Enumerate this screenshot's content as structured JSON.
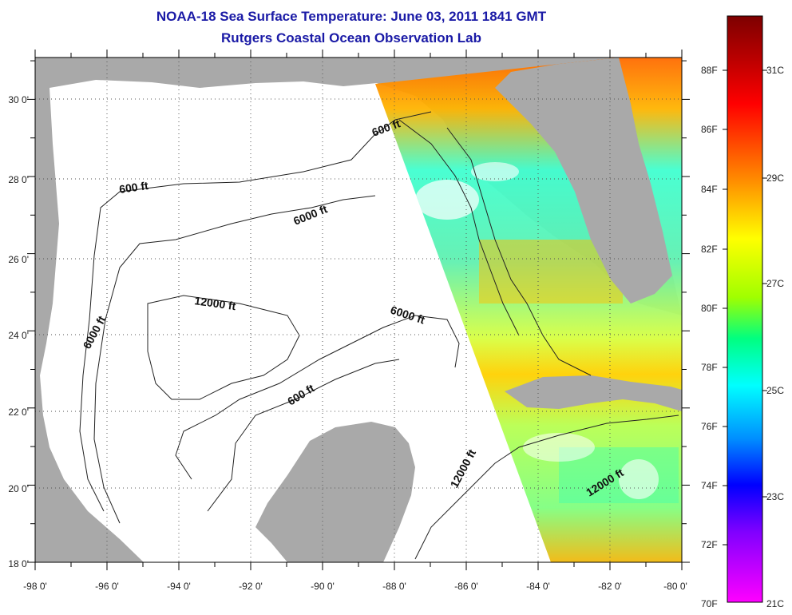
{
  "title": {
    "line1": "NOAA-18 Sea Surface Temperature:  June 03, 2011 1841 GMT",
    "line2": "Rutgers Coastal Ocean Observation Lab"
  },
  "map": {
    "lon_labels": [
      "-98 0'",
      "-96 0'",
      "-94 0'",
      "-92 0'",
      "-90 0'",
      "-88 0'",
      "-86 0'",
      "-84 0'",
      "-82 0'",
      "-80 0'"
    ],
    "lat_labels": [
      "30 0'",
      "28 0'",
      "26 0'",
      "24 0'",
      "22 0'",
      "20 0'",
      "18 0'"
    ],
    "contour_labels": [
      {
        "text": "600 ft"
      },
      {
        "text": "600 ft"
      },
      {
        "text": "6000 ft"
      },
      {
        "text": "12000 ft"
      },
      {
        "text": "6000 ft"
      },
      {
        "text": "6000 ft"
      },
      {
        "text": "600 ft"
      },
      {
        "text": "12000 ft"
      },
      {
        "text": "12000 ft"
      }
    ],
    "colors": {
      "land": "#a9a9a9",
      "ocean": "#ffffff",
      "grid": "#555555"
    }
  },
  "colorbar": {
    "f_labels": [
      "88F",
      "86F",
      "84F",
      "82F",
      "80F",
      "78F",
      "76F",
      "74F",
      "72F",
      "70F"
    ],
    "c_labels": [
      "31C",
      "29C",
      "27C",
      "25C",
      "23C",
      "21C"
    ],
    "colors_top_to_bottom": [
      "#7d0000",
      "#ff0000",
      "#ff8c00",
      "#ffff00",
      "#7fff00",
      "#00ff80",
      "#00ffff",
      "#0080ff",
      "#0000ff",
      "#8000ff",
      "#ff00ff"
    ]
  }
}
